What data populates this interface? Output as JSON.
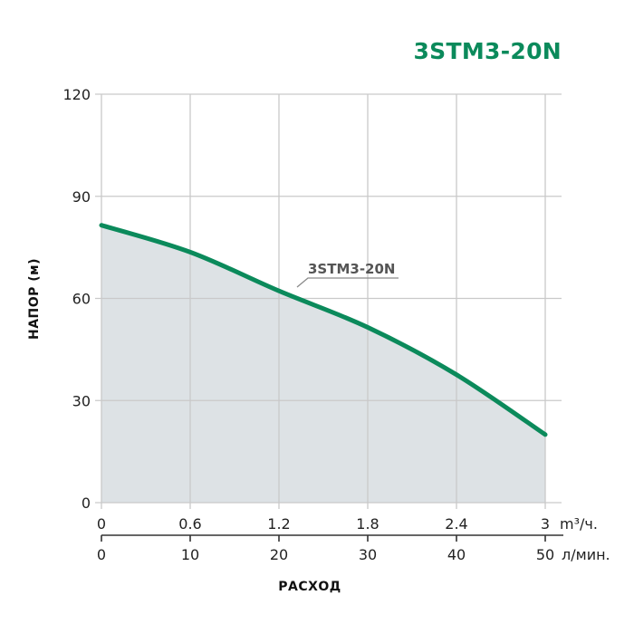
{
  "chart_data": {
    "type": "area",
    "title": "3STM3-20N",
    "xlabel": "РАСХОД",
    "ylabel": "НАПОР (м)",
    "x_primary": {
      "unit": "m³/ч.",
      "ticks": [
        "0",
        "0.6",
        "1.2",
        "1.8",
        "2.4",
        "3"
      ],
      "range": [
        0,
        3
      ]
    },
    "x_secondary": {
      "unit": "л/мин.",
      "ticks": [
        "0",
        "10",
        "20",
        "30",
        "40",
        "50"
      ],
      "range": [
        0,
        50
      ]
    },
    "y": {
      "ticks": [
        "0",
        "30",
        "60",
        "90",
        "120"
      ],
      "range": [
        0,
        120
      ]
    },
    "grid": true,
    "series": [
      {
        "name": "3STM3-20N",
        "color": "#0b8a5b",
        "fill": "#dde2e5",
        "x": [
          0,
          0.6,
          1.2,
          1.8,
          2.4,
          3.0
        ],
        "values": [
          81.5,
          73.6,
          62.2,
          51.5,
          37.6,
          20.0
        ]
      }
    ],
    "annotations": [
      {
        "text": "3STM3-20N",
        "x": 1.3,
        "y": 63
      }
    ]
  },
  "header": {
    "title": "3STM3-20N"
  },
  "axes": {
    "ylabel": "НАПОР (м)",
    "xlabel": "РАСХОД",
    "x_unit_primary": "m³/ч.",
    "x_unit_secondary": "л/мин."
  },
  "colors": {
    "accent": "#0b8a5b",
    "fill": "#dde2e5",
    "grid": "#c9c9c9"
  }
}
